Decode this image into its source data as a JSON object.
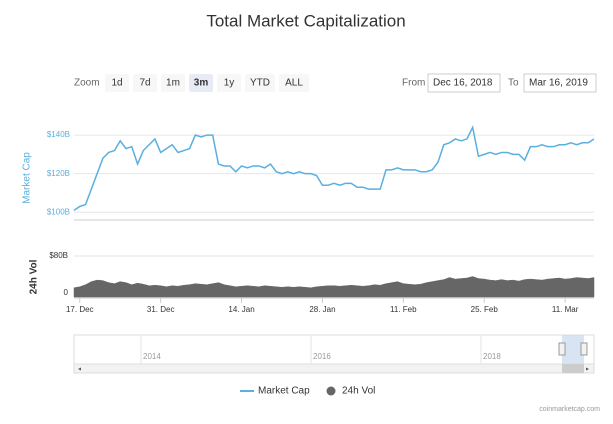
{
  "chart_data": {
    "type": "line",
    "title": "Total Market Capitalization",
    "categories": [
      null,
      "17. Dec",
      null,
      null,
      null,
      null,
      null,
      null,
      null,
      null,
      null,
      null,
      null,
      null,
      null,
      "31. Dec",
      null,
      null,
      null,
      null,
      null,
      null,
      null,
      null,
      null,
      null,
      null,
      null,
      null,
      "14. Jan",
      null,
      null,
      null,
      null,
      null,
      null,
      null,
      null,
      null,
      null,
      null,
      null,
      null,
      "28. Jan",
      null,
      null,
      null,
      null,
      null,
      null,
      null,
      null,
      null,
      null,
      null,
      null,
      null,
      "11. Feb",
      null,
      null,
      null,
      null,
      null,
      null,
      null,
      null,
      null,
      null,
      null,
      null,
      null,
      "25. Feb",
      null,
      null,
      null,
      null,
      null,
      null,
      null,
      null,
      null,
      null,
      null,
      null,
      null,
      "11. Mar",
      null,
      null,
      null,
      null,
      null
    ],
    "series": [
      {
        "name": "Market Cap",
        "color": "#5aafdf",
        "axis": "y",
        "values": [
          101,
          103,
          104,
          112,
          120,
          128,
          131,
          132,
          137,
          133,
          134,
          125,
          132,
          135,
          138,
          131,
          133,
          135,
          131,
          132,
          133,
          140,
          139,
          140,
          140,
          125,
          124,
          124,
          121,
          124,
          123,
          124,
          124,
          123,
          125,
          121,
          120,
          121,
          120,
          121,
          120,
          120,
          119,
          114,
          114,
          115,
          114,
          115,
          115,
          113,
          113,
          112,
          112,
          112,
          122,
          122,
          123,
          122,
          122,
          122,
          121,
          121,
          122,
          126,
          135,
          136,
          138,
          137,
          138,
          144,
          129,
          130,
          131,
          130,
          131,
          131,
          130,
          130,
          127,
          134,
          134,
          135,
          134,
          134,
          135,
          135,
          136,
          135,
          136,
          136,
          138
        ]
      },
      {
        "name": "24h Vol",
        "color": "#666666",
        "axis": "y2",
        "values": [
          18,
          20,
          24,
          30,
          33,
          32,
          28,
          26,
          30,
          28,
          24,
          27,
          25,
          22,
          23,
          22,
          20,
          22,
          21,
          23,
          24,
          26,
          25,
          24,
          26,
          28,
          24,
          22,
          20,
          21,
          22,
          21,
          20,
          22,
          21,
          20,
          19,
          20,
          19,
          20,
          19,
          18,
          20,
          21,
          22,
          22,
          21,
          22,
          23,
          22,
          21,
          22,
          24,
          23,
          26,
          28,
          30,
          26,
          25,
          24,
          25,
          28,
          30,
          32,
          34,
          38,
          35,
          36,
          37,
          40,
          36,
          35,
          33,
          32,
          34,
          32,
          33,
          31,
          34,
          35,
          34,
          33,
          35,
          36,
          37,
          35,
          36,
          38,
          37,
          36,
          38
        ]
      }
    ],
    "ylabel": "Market Cap",
    "ylim": [
      96,
      153
    ],
    "yticks": [
      {
        "value": 100,
        "label": "$100B"
      },
      {
        "value": 120,
        "label": "$120B"
      },
      {
        "value": 140,
        "label": "$140B"
      }
    ],
    "y2label": "24h Vol",
    "y2lim": [
      0,
      80
    ],
    "y2ticks": [
      0,
      {
        "value": 80,
        "label": "$80B"
      }
    ],
    "grid": true
  },
  "controls": {
    "zoom_label": "Zoom",
    "buttons": [
      "1d",
      "7d",
      "1m",
      "3m",
      "1y",
      "YTD",
      "ALL"
    ],
    "active": "3m",
    "from_label": "From",
    "from": "Dec 16, 2018",
    "to_label": "To",
    "to": "Mar 16, 2019"
  },
  "navigator": {
    "labels": [
      "2014",
      "2016",
      "2018"
    ]
  },
  "credit": "coinmarketcap.com"
}
